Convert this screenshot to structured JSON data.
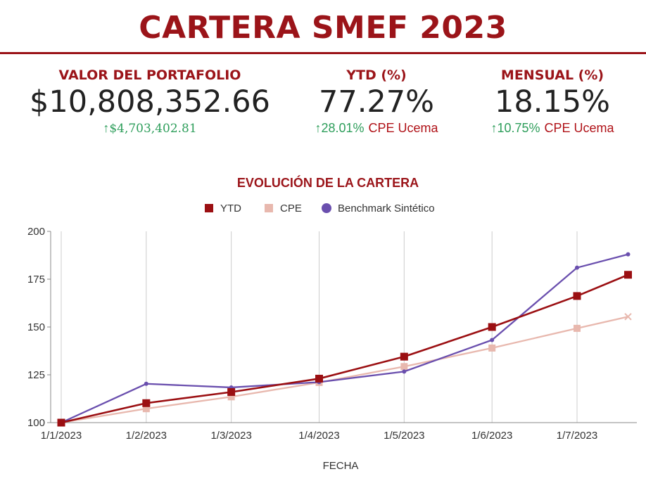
{
  "page": {
    "title": "CARTERA SMEF 2023"
  },
  "kpis": {
    "portfolio": {
      "label": "VALOR DEL PORTAFOLIO",
      "value": "$10,808,352.66",
      "delta": "$4,703,402.81"
    },
    "ytd": {
      "label": "YTD (%)",
      "value": "77.27%",
      "delta": "28.01%",
      "benchmark": "CPE Ucema"
    },
    "monthly": {
      "label": "MENSUAL (%)",
      "value": "18.15%",
      "delta": "10.75%",
      "benchmark": "CPE Ucema"
    }
  },
  "icons": {
    "delta": "arrow-up-icon"
  },
  "colors": {
    "accent": "#9b1419",
    "positive": "#2e9e5b",
    "ytd": "#9b0f12",
    "cpe": "#e8b8ae",
    "benchmark": "#6a4fae"
  },
  "chart_data": {
    "type": "line",
    "title": "EVOLUCIÓN DE LA CARTERA",
    "xlabel": "FECHA",
    "ylabel": "",
    "legend_position": "top",
    "grid": "vertical",
    "categories": [
      "1/1/2023",
      "1/2/2023",
      "1/3/2023",
      "1/4/2023",
      "1/5/2023",
      "1/6/2023",
      "1/7/2023"
    ],
    "x": [
      "2023-01-01",
      "2023-01-31",
      "2023-03-02",
      "2023-04-02",
      "2023-05-02",
      "2023-06-02",
      "2023-07-02",
      "2023-07-20"
    ],
    "ylim": [
      100,
      200
    ],
    "yticks": [
      100,
      125,
      150,
      175,
      200
    ],
    "series": [
      {
        "name": "YTD",
        "marker": "square",
        "values": [
          100.0,
          110.2,
          116.0,
          123.0,
          134.5,
          150.0,
          166.2,
          177.3
        ]
      },
      {
        "name": "CPE",
        "marker": "x",
        "values": [
          100.0,
          107.3,
          113.5,
          121.0,
          129.3,
          139.0,
          149.3,
          155.4
        ]
      },
      {
        "name": "Benchmark Sintético",
        "marker": "circle",
        "values": [
          100.0,
          120.3,
          118.4,
          121.2,
          126.7,
          143.2,
          181.0,
          188.0
        ]
      }
    ]
  }
}
